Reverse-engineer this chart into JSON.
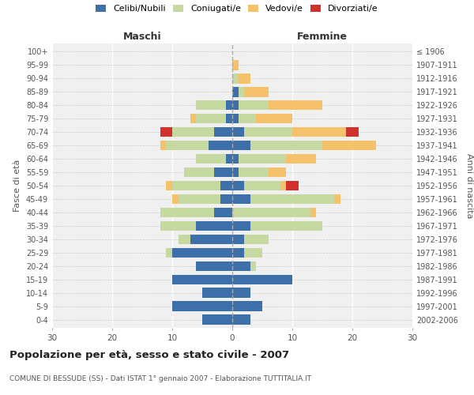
{
  "age_groups": [
    "0-4",
    "5-9",
    "10-14",
    "15-19",
    "20-24",
    "25-29",
    "30-34",
    "35-39",
    "40-44",
    "45-49",
    "50-54",
    "55-59",
    "60-64",
    "65-69",
    "70-74",
    "75-79",
    "80-84",
    "85-89",
    "90-94",
    "95-99",
    "100+"
  ],
  "birth_years": [
    "2002-2006",
    "1997-2001",
    "1992-1996",
    "1987-1991",
    "1982-1986",
    "1977-1981",
    "1972-1976",
    "1967-1971",
    "1962-1966",
    "1957-1961",
    "1952-1956",
    "1947-1951",
    "1942-1946",
    "1937-1941",
    "1932-1936",
    "1927-1931",
    "1922-1926",
    "1917-1921",
    "1912-1916",
    "1907-1911",
    "≤ 1906"
  ],
  "males": {
    "celibi": [
      5,
      10,
      5,
      10,
      6,
      10,
      7,
      6,
      3,
      2,
      2,
      3,
      1,
      4,
      3,
      1,
      1,
      0,
      0,
      0,
      0
    ],
    "coniugati": [
      0,
      0,
      0,
      0,
      0,
      1,
      2,
      6,
      9,
      7,
      8,
      5,
      5,
      7,
      7,
      5,
      5,
      0,
      0,
      0,
      0
    ],
    "vedovi": [
      0,
      0,
      0,
      0,
      0,
      0,
      0,
      0,
      0,
      1,
      1,
      0,
      0,
      1,
      0,
      1,
      0,
      0,
      0,
      0,
      0
    ],
    "divorziati": [
      0,
      0,
      0,
      0,
      0,
      0,
      0,
      0,
      0,
      0,
      0,
      0,
      0,
      0,
      2,
      0,
      0,
      0,
      0,
      0,
      0
    ]
  },
  "females": {
    "nubili": [
      3,
      5,
      3,
      10,
      3,
      2,
      2,
      3,
      0,
      3,
      2,
      1,
      1,
      3,
      2,
      1,
      1,
      1,
      0,
      0,
      0
    ],
    "coniugate": [
      0,
      0,
      0,
      0,
      1,
      3,
      4,
      12,
      13,
      14,
      6,
      5,
      8,
      12,
      8,
      3,
      5,
      1,
      1,
      0,
      0
    ],
    "vedove": [
      0,
      0,
      0,
      0,
      0,
      0,
      0,
      0,
      1,
      1,
      1,
      3,
      5,
      9,
      9,
      6,
      9,
      4,
      2,
      1,
      0
    ],
    "divorziate": [
      0,
      0,
      0,
      0,
      0,
      0,
      0,
      0,
      0,
      0,
      2,
      0,
      0,
      0,
      2,
      0,
      0,
      0,
      0,
      0,
      0
    ]
  },
  "colors": {
    "celibi_nubili": "#3d6fa8",
    "coniugati": "#c5d9a0",
    "vedovi": "#f5c26b",
    "divorziati": "#d0312d"
  },
  "xlim": 30,
  "title": "Popolazione per età, sesso e stato civile - 2007",
  "subtitle": "COMUNE DI BESSUDE (SS) - Dati ISTAT 1° gennaio 2007 - Elaborazione TUTTITALIA.IT",
  "xlabel_left": "Maschi",
  "xlabel_right": "Femmine",
  "ylabel_left": "Fasce di età",
  "ylabel_right": "Anni di nascita",
  "legend_labels": [
    "Celibi/Nubili",
    "Coniugati/e",
    "Vedovi/e",
    "Divorziati/e"
  ],
  "bg_color": "#ffffff",
  "plot_bg_color": "#f0f0f0"
}
